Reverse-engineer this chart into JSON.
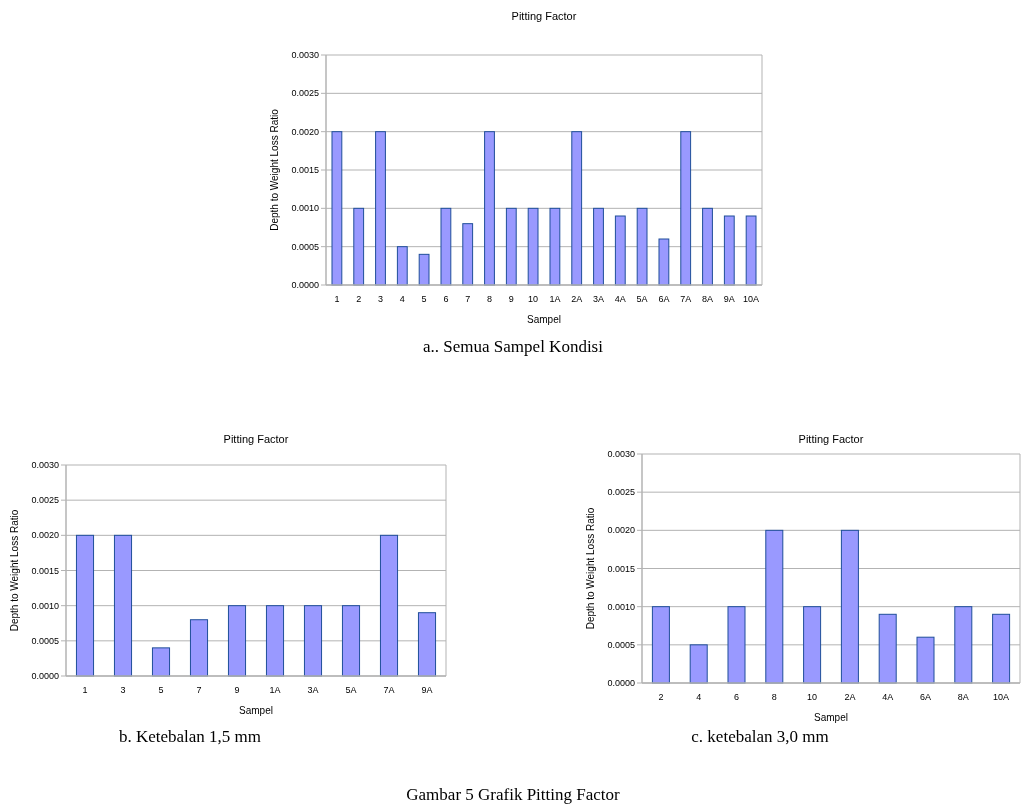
{
  "chart_data": [
    {
      "type": "bar",
      "title": "Pitting Factor",
      "xlabel": "Sampel",
      "ylabel": "Depth to Weight Loss Ratio",
      "categories": [
        "1",
        "2",
        "3",
        "4",
        "5",
        "6",
        "7",
        "8",
        "9",
        "10",
        "1A",
        "2A",
        "3A",
        "4A",
        "5A",
        "6A",
        "7A",
        "8A",
        "9A",
        "10A"
      ],
      "values": [
        0.002,
        0.001,
        0.002,
        0.0005,
        0.0004,
        0.001,
        0.0008,
        0.002,
        0.001,
        0.001,
        0.001,
        0.002,
        0.001,
        0.0009,
        0.001,
        0.0006,
        0.002,
        0.001,
        0.0009,
        0.0009
      ],
      "color": "#9999ff",
      "ylim": [
        0,
        0.003
      ],
      "yticks": [
        {
          "value": 0,
          "label": "0.0000"
        },
        {
          "value": 0.0005,
          "label": "0.0005"
        },
        {
          "value": 0.001,
          "label": "0.0010"
        },
        {
          "value": 0.0015,
          "label": "0.0015"
        },
        {
          "value": 0.002,
          "label": "0.0020"
        },
        {
          "value": 0.0025,
          "label": "0.0025"
        },
        {
          "value": 0.003,
          "label": "0.0030"
        }
      ],
      "grid": "y",
      "annotations": [
        "a.. Semua Sampel Kondisi"
      ]
    },
    {
      "type": "bar",
      "title": "Pitting Factor",
      "xlabel": "Sampel",
      "ylabel": "Depth to Weight Loss Ratio",
      "categories": [
        "1",
        "3",
        "5",
        "7",
        "9",
        "1A",
        "3A",
        "5A",
        "7A",
        "9A"
      ],
      "values": [
        0.002,
        0.002,
        0.0004,
        0.0008,
        0.001,
        0.001,
        0.001,
        0.001,
        0.002,
        0.0009
      ],
      "color": "#9999ff",
      "ylim": [
        0,
        0.003
      ],
      "yticks": [
        {
          "value": 0,
          "label": "0.0000"
        },
        {
          "value": 0.0005,
          "label": "0.0005"
        },
        {
          "value": 0.001,
          "label": "0.0010"
        },
        {
          "value": 0.0015,
          "label": "0.0015"
        },
        {
          "value": 0.002,
          "label": "0.0020"
        },
        {
          "value": 0.0025,
          "label": "0.0025"
        },
        {
          "value": 0.003,
          "label": "0.0030"
        }
      ],
      "grid": "y",
      "annotations": [
        "b. Ketebalan 1,5 mm"
      ]
    },
    {
      "type": "bar",
      "title": "Pitting Factor",
      "xlabel": "Sampel",
      "ylabel": "Depth to Weight Loss Ratio",
      "categories": [
        "2",
        "4",
        "6",
        "8",
        "10",
        "2A",
        "4A",
        "6A",
        "8A",
        "10A"
      ],
      "values": [
        0.001,
        0.0005,
        0.001,
        0.002,
        0.001,
        0.002,
        0.0009,
        0.0006,
        0.001,
        0.0009
      ],
      "color": "#9999ff",
      "ylim": [
        0,
        0.003
      ],
      "yticks": [
        {
          "value": 0,
          "label": "0.0000"
        },
        {
          "value": 0.0005,
          "label": "0.0005"
        },
        {
          "value": 0.001,
          "label": "0.0010"
        },
        {
          "value": 0.0015,
          "label": "0.0015"
        },
        {
          "value": 0.002,
          "label": "0.0020"
        },
        {
          "value": 0.0025,
          "label": "0.0025"
        },
        {
          "value": 0.003,
          "label": "0.0030"
        }
      ],
      "grid": "y",
      "annotations": [
        "c. ketebalan 3,0 mm",
        "Gambar 5 Grafik Pitting Factor"
      ]
    }
  ]
}
